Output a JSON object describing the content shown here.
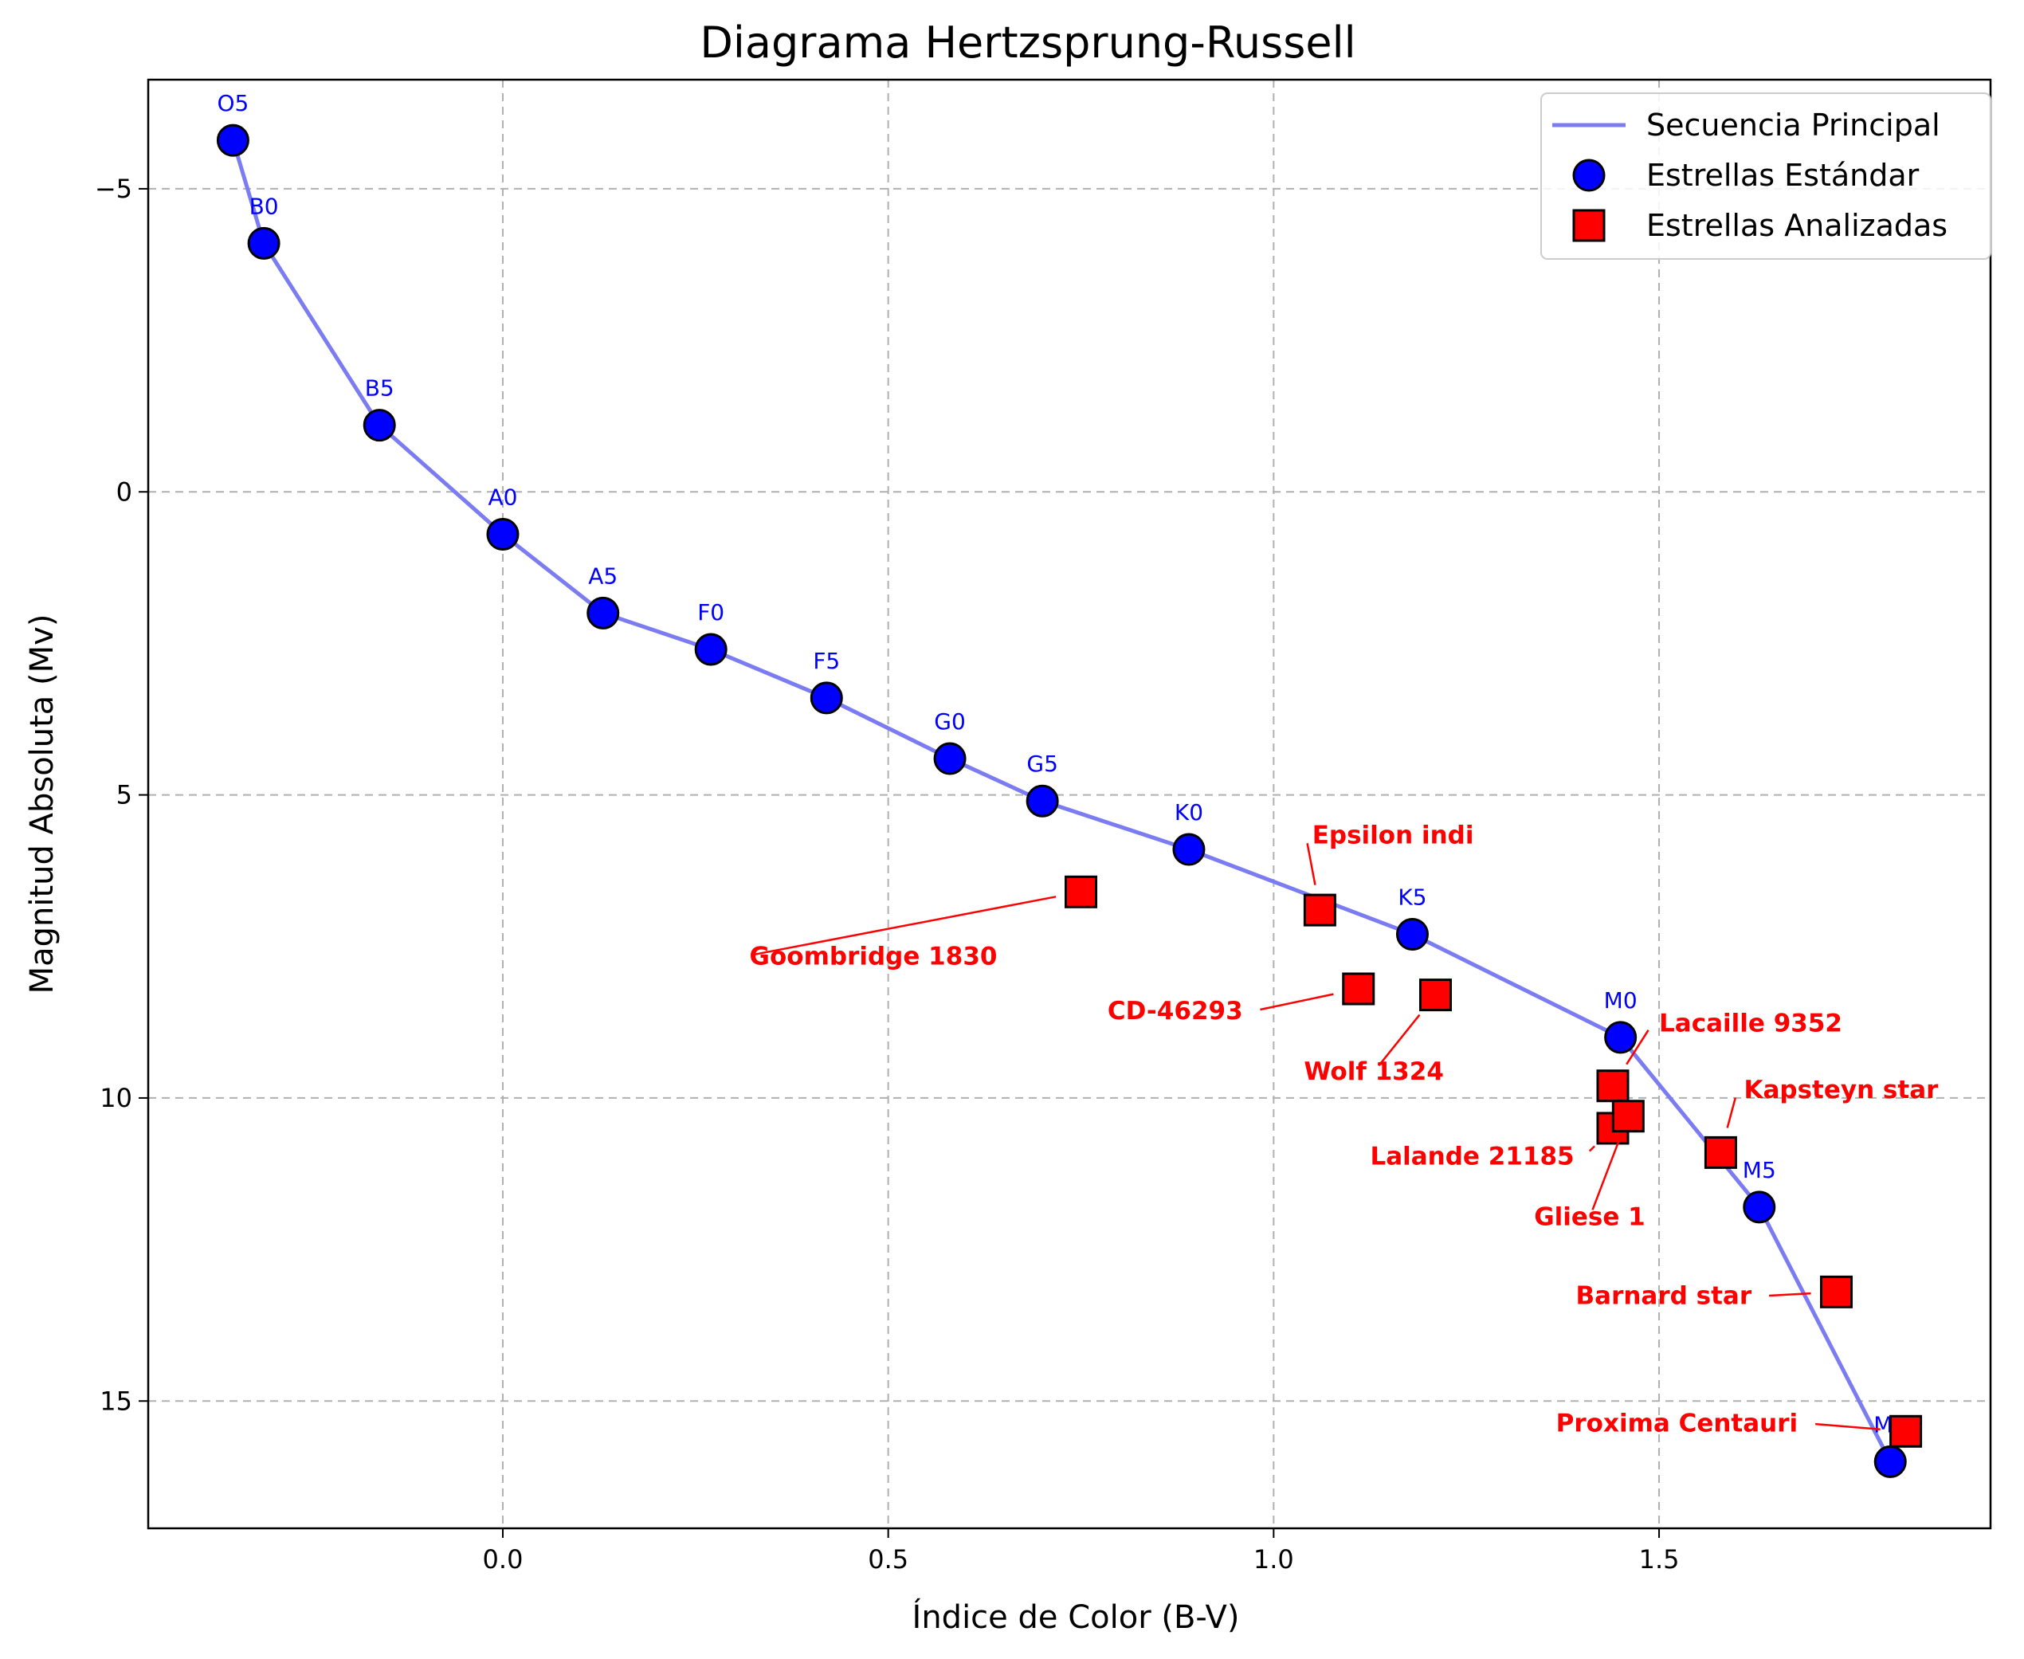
{
  "chart_data": {
    "type": "scatter",
    "title": "Diagrama Hertzsprung-Russell",
    "xlabel": "Índice de Color (B-V)",
    "ylabel": "Magnitud Absoluta (Mv)",
    "xlim": [
      -0.46,
      1.93
    ],
    "ylim": [
      17.1,
      -6.8
    ],
    "y_inverted": true,
    "grid": true,
    "legend_position": "top-right",
    "x_ticks": [
      0.0,
      0.5,
      1.0,
      1.5
    ],
    "x_tick_labels": [
      "0.0",
      "0.5",
      "1.0",
      "1.5"
    ],
    "y_ticks": [
      -5,
      0,
      5,
      10,
      15
    ],
    "y_tick_labels": [
      "−5",
      "0",
      "5",
      "10",
      "15"
    ],
    "legend": [
      {
        "label": "Secuencia Principal",
        "kind": "line",
        "color": "#7b7bf2"
      },
      {
        "label": "Estrellas Estándar",
        "kind": "circle",
        "color": "#0000ff"
      },
      {
        "label": "Estrellas Analizadas",
        "kind": "square",
        "color": "#ff0000"
      }
    ],
    "main_sequence": {
      "name": "Secuencia Principal",
      "color": "#7b7bf2",
      "points": [
        {
          "x": -0.35,
          "y": -5.8
        },
        {
          "x": -0.31,
          "y": -4.1
        },
        {
          "x": -0.16,
          "y": -1.1
        },
        {
          "x": 0.0,
          "y": 0.7
        },
        {
          "x": 0.13,
          "y": 2.0
        },
        {
          "x": 0.27,
          "y": 2.6
        },
        {
          "x": 0.42,
          "y": 3.4
        },
        {
          "x": 0.58,
          "y": 4.4
        },
        {
          "x": 0.7,
          "y": 5.1
        },
        {
          "x": 0.89,
          "y": 5.9
        },
        {
          "x": 1.18,
          "y": 7.3
        },
        {
          "x": 1.45,
          "y": 9.0
        },
        {
          "x": 1.63,
          "y": 11.8
        },
        {
          "x": 1.8,
          "y": 16.0
        }
      ]
    },
    "standard_stars": {
      "name": "Estrellas Estándar",
      "color": "#0000ff",
      "points": [
        {
          "label": "O5",
          "x": -0.35,
          "y": -5.8
        },
        {
          "label": "B0",
          "x": -0.31,
          "y": -4.1
        },
        {
          "label": "B5",
          "x": -0.16,
          "y": -1.1
        },
        {
          "label": "A0",
          "x": 0.0,
          "y": 0.7
        },
        {
          "label": "A5",
          "x": 0.13,
          "y": 2.0
        },
        {
          "label": "F0",
          "x": 0.27,
          "y": 2.6
        },
        {
          "label": "F5",
          "x": 0.42,
          "y": 3.4
        },
        {
          "label": "G0",
          "x": 0.58,
          "y": 4.4
        },
        {
          "label": "G5",
          "x": 0.7,
          "y": 5.1
        },
        {
          "label": "K0",
          "x": 0.89,
          "y": 5.9
        },
        {
          "label": "K5",
          "x": 1.18,
          "y": 7.3
        },
        {
          "label": "M0",
          "x": 1.45,
          "y": 9.0
        },
        {
          "label": "M5",
          "x": 1.63,
          "y": 11.8
        },
        {
          "label": "M8",
          "x": 1.8,
          "y": 16.0
        }
      ]
    },
    "analyzed_stars": {
      "name": "Estrellas Analizadas",
      "color": "#ff0000",
      "points": [
        {
          "label": "Goombridge 1830",
          "x": 0.75,
          "y": 6.6,
          "label_x": 0.32,
          "label_y": 7.8,
          "anchor": "start"
        },
        {
          "label": "Epsilon indi",
          "x": 1.06,
          "y": 6.9,
          "label_x": 1.05,
          "label_y": 5.8,
          "anchor": "start"
        },
        {
          "label": "CD-46293",
          "x": 1.11,
          "y": 8.2,
          "label_x": 0.96,
          "label_y": 8.7,
          "anchor": "end"
        },
        {
          "label": "Wolf  1324",
          "x": 1.21,
          "y": 8.3,
          "label_x": 1.13,
          "label_y": 9.7,
          "anchor": "middle"
        },
        {
          "label": "Lacaille 9352",
          "x": 1.44,
          "y": 9.8,
          "label_x": 1.5,
          "label_y": 8.9,
          "anchor": "start"
        },
        {
          "label": "Lalande 21185",
          "x": 1.44,
          "y": 10.5,
          "label_x": 1.39,
          "label_y": 11.1,
          "anchor": "end"
        },
        {
          "label": "Gliese 1",
          "x": 1.46,
          "y": 10.3,
          "label_x": 1.41,
          "label_y": 12.1,
          "anchor": "middle"
        },
        {
          "label": "Kapsteyn star",
          "x": 1.58,
          "y": 10.9,
          "label_x": 1.61,
          "label_y": 10.0,
          "anchor": "start"
        },
        {
          "label": "Barnard star",
          "x": 1.73,
          "y": 13.2,
          "label_x": 1.62,
          "label_y": 13.4,
          "anchor": "end"
        },
        {
          "label": "Proxima Centauri",
          "x": 1.82,
          "y": 15.5,
          "label_x": 1.68,
          "label_y": 15.5,
          "anchor": "end"
        }
      ]
    }
  }
}
